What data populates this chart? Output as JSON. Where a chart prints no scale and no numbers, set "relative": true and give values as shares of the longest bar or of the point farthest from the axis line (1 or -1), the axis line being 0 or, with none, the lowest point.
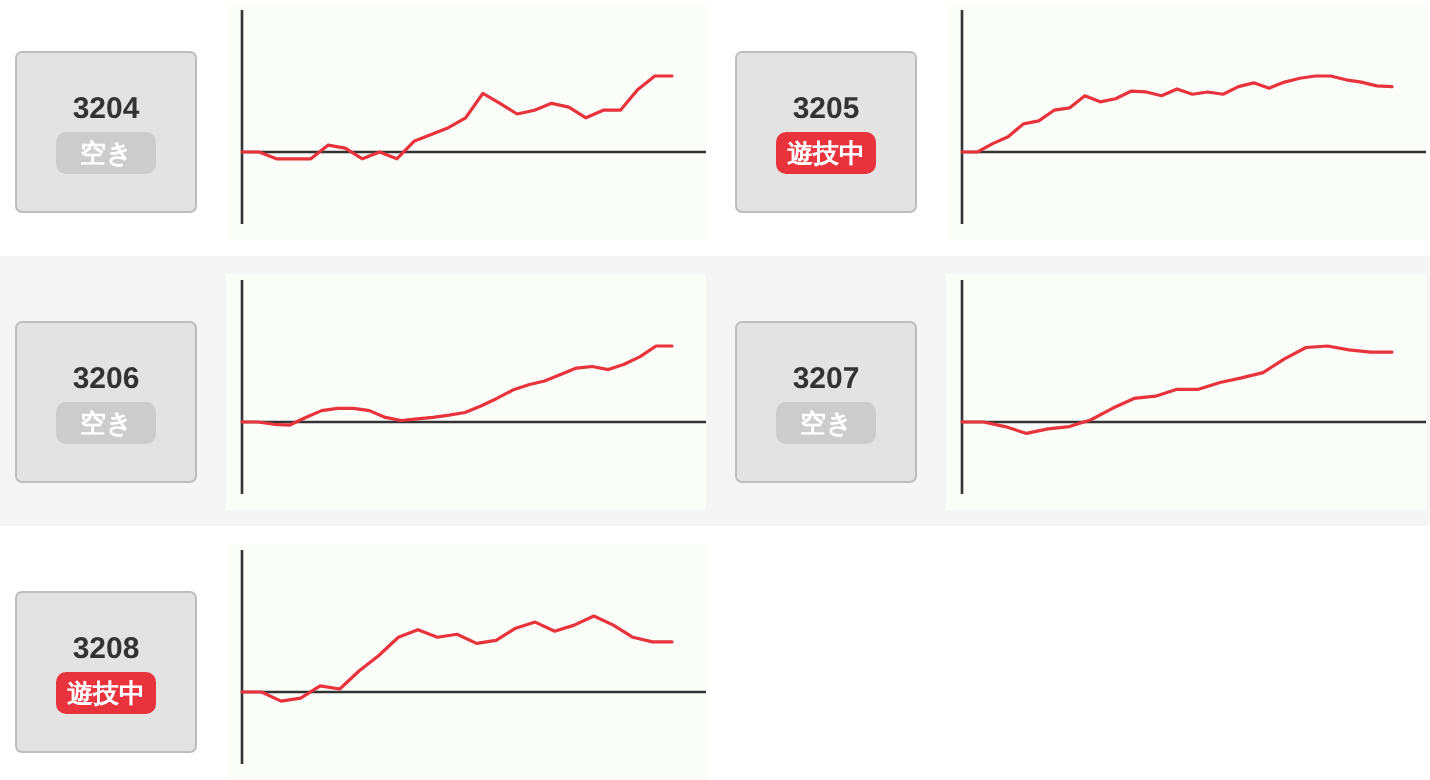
{
  "chart_data": [
    {
      "type": "other",
      "title": "3204",
      "annotations": [
        "空き"
      ],
      "color": "#cccccc"
    },
    {
      "type": "line",
      "relative": true,
      "categories": [
        null,
        null,
        null,
        null,
        null,
        null,
        null,
        null,
        null,
        null,
        null,
        null,
        null,
        null,
        null,
        null,
        null,
        null,
        null,
        null,
        null,
        null,
        null,
        null,
        null,
        null
      ],
      "series": [
        {
          "color": "#e8323c",
          "values": [
            0,
            0,
            -0.09,
            -0.09,
            -0.09,
            0.09,
            0.05,
            -0.09,
            0,
            -0.09,
            0.14,
            0.23,
            0.32,
            0.45,
            0.77,
            0.64,
            0.5,
            0.55,
            0.64,
            0.59,
            0.45,
            0.55,
            0.55,
            0.82,
            1,
            1
          ]
        }
      ]
    },
    {
      "type": "other",
      "title": "3205",
      "annotations": [
        "遊技中"
      ],
      "color": "#e8323c"
    },
    {
      "type": "line",
      "relative": true,
      "categories": [
        null,
        null,
        null,
        null,
        null,
        null,
        null,
        null,
        null,
        null,
        null,
        null,
        null,
        null,
        null,
        null,
        null,
        null,
        null,
        null,
        null,
        null,
        null,
        null,
        null,
        null,
        null,
        null,
        null
      ],
      "series": [
        {
          "color": "#e8323c",
          "values": [
            0,
            0,
            0.11,
            0.2,
            0.37,
            0.41,
            0.55,
            0.58,
            0.74,
            0.66,
            0.7,
            0.8,
            0.79,
            0.74,
            0.83,
            0.76,
            0.79,
            0.76,
            0.86,
            0.91,
            0.84,
            0.92,
            0.97,
            1,
            1,
            0.95,
            0.92,
            0.87,
            0.86
          ]
        }
      ]
    },
    {
      "type": "other",
      "title": "3206",
      "annotations": [
        "空き"
      ],
      "color": "#cccccc"
    },
    {
      "type": "line",
      "relative": true,
      "categories": [
        null,
        null,
        null,
        null,
        null,
        null,
        null,
        null,
        null,
        null,
        null,
        null,
        null,
        null,
        null,
        null,
        null,
        null,
        null,
        null,
        null,
        null,
        null,
        null,
        null,
        null,
        null,
        null
      ],
      "series": [
        {
          "color": "#e8323c",
          "values": [
            0,
            0,
            -0.03,
            -0.04,
            0.06,
            0.15,
            0.18,
            0.18,
            0.15,
            0.06,
            0.02,
            0.04,
            0.06,
            0.09,
            0.125,
            0.21,
            0.31,
            0.42,
            0.49,
            0.54,
            0.625,
            0.71,
            0.73,
            0.69,
            0.76,
            0.86,
            1,
            1
          ]
        }
      ]
    },
    {
      "type": "other",
      "title": "3207",
      "annotations": [
        "空き"
      ],
      "color": "#cccccc"
    },
    {
      "type": "line",
      "relative": true,
      "categories": [
        null,
        null,
        null,
        null,
        null,
        null,
        null,
        null,
        null,
        null,
        null,
        null,
        null,
        null,
        null,
        null,
        null,
        null,
        null,
        null,
        null
      ],
      "series": [
        {
          "color": "#e8323c",
          "values": [
            0,
            0,
            -0.06,
            -0.15,
            -0.09,
            -0.06,
            0.03,
            0.18,
            0.31,
            0.34,
            0.43,
            0.43,
            0.52,
            0.58,
            0.65,
            0.83,
            0.98,
            1,
            0.95,
            0.92,
            0.92
          ]
        }
      ]
    },
    {
      "type": "other",
      "title": "3208",
      "annotations": [
        "遊技中"
      ],
      "color": "#e8323c"
    },
    {
      "type": "line",
      "relative": true,
      "categories": [
        null,
        null,
        null,
        null,
        null,
        null,
        null,
        null,
        null,
        null,
        null,
        null,
        null,
        null,
        null,
        null,
        null,
        null,
        null,
        null,
        null,
        null,
        null
      ],
      "series": [
        {
          "color": "#e8323c",
          "values": [
            0,
            0,
            -0.12,
            -0.08,
            0.08,
            0.04,
            0.28,
            0.48,
            0.72,
            0.82,
            0.72,
            0.76,
            0.64,
            0.68,
            0.84,
            0.92,
            0.8,
            0.88,
            1,
            0.88,
            0.72,
            0.66,
            0.66
          ]
        }
      ]
    }
  ]
}
